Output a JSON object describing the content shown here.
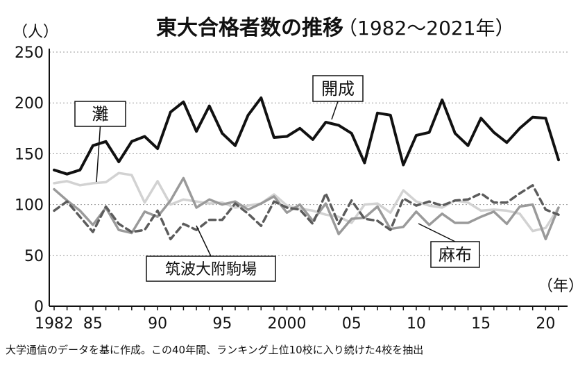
{
  "chart_data": {
    "type": "line",
    "title": "東大合格者数の推移",
    "title_suffix": "（1982〜2021年）",
    "ylabel": "（人）",
    "xlabel": "（年）",
    "ylim": [
      0,
      250
    ],
    "yticks": [
      0,
      50,
      100,
      150,
      200,
      250
    ],
    "xlim": [
      1982,
      2021
    ],
    "xticks": [
      {
        "year": 1982,
        "label": "1982"
      },
      {
        "year": 1985,
        "label": "85"
      },
      {
        "year": 1990,
        "label": "90"
      },
      {
        "year": 1995,
        "label": "95"
      },
      {
        "year": 2000,
        "label": "2000"
      },
      {
        "year": 2005,
        "label": "05"
      },
      {
        "year": 2010,
        "label": "10"
      },
      {
        "year": 2015,
        "label": "15"
      },
      {
        "year": 2020,
        "label": "20"
      }
    ],
    "grid": "horizontal dotted",
    "x": [
      1982,
      1983,
      1984,
      1985,
      1986,
      1987,
      1988,
      1989,
      1990,
      1991,
      1992,
      1993,
      1994,
      1995,
      1996,
      1997,
      1998,
      1999,
      2000,
      2001,
      2002,
      2003,
      2004,
      2005,
      2006,
      2007,
      2008,
      2009,
      2010,
      2011,
      2012,
      2013,
      2014,
      2015,
      2016,
      2017,
      2018,
      2019,
      2020,
      2021
    ],
    "series": [
      {
        "name": "開成",
        "color": "#111111",
        "dash": "",
        "values": [
          134,
          130,
          134,
          158,
          162,
          142,
          162,
          167,
          155,
          191,
          201,
          172,
          197,
          170,
          158,
          188,
          205,
          166,
          167,
          175,
          164,
          181,
          178,
          170,
          141,
          190,
          188,
          139,
          168,
          171,
          203,
          170,
          158,
          185,
          171,
          161,
          175,
          186,
          185,
          144
        ]
      },
      {
        "name": "灘",
        "color": "#d2d2d2",
        "dash": "",
        "values": [
          121,
          123,
          119,
          121,
          122,
          131,
          129,
          102,
          123,
          100,
          105,
          103,
          101,
          102,
          97,
          99,
          101,
          110,
          99,
          96,
          94,
          90,
          88,
          82,
          100,
          101,
          92,
          114,
          103,
          99,
          97,
          104,
          102,
          94,
          95,
          94,
          91,
          74,
          77,
          97
        ]
      },
      {
        "name": "麻布",
        "color": "#9a9a9a",
        "dash": "",
        "values": [
          115,
          104,
          94,
          80,
          97,
          75,
          72,
          93,
          88,
          104,
          126,
          97,
          105,
          100,
          103,
          95,
          101,
          108,
          92,
          100,
          84,
          101,
          71,
          86,
          87,
          98,
          76,
          78,
          93,
          80,
          91,
          82,
          82,
          88,
          93,
          81,
          98,
          100,
          66,
          97
        ]
      },
      {
        "name": "筑波大附駒場",
        "color": "#5c5c5c",
        "dash": "9 6",
        "values": [
          94,
          103,
          88,
          73,
          98,
          81,
          73,
          75,
          94,
          66,
          81,
          75,
          85,
          85,
          101,
          91,
          79,
          103,
          97,
          95,
          81,
          111,
          81,
          104,
          86,
          84,
          75,
          106,
          99,
          103,
          99,
          104,
          105,
          111,
          102,
          102,
          111,
          119,
          95,
          90
        ]
      }
    ],
    "annotations": [
      {
        "series": "開成",
        "text": "開成"
      },
      {
        "series": "灘",
        "text": "灘"
      },
      {
        "series": "麻布",
        "text": "麻布"
      },
      {
        "series": "筑波大附駒場",
        "text": "筑波大附駒場"
      }
    ],
    "footnote": "大学通信のデータを基に作成。この40年間、ランキング上位10校に入り続けた4校を抽出"
  }
}
